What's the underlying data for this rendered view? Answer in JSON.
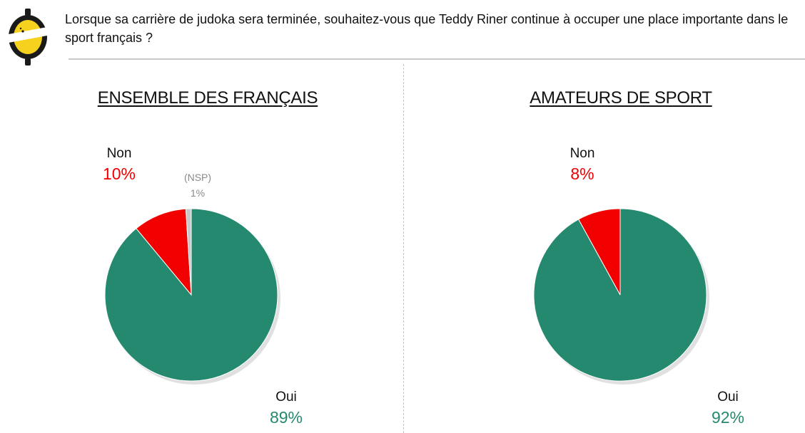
{
  "question": "Lorsque sa carrière de judoka sera terminée, souhaitez-vous que Teddy Riner continue à occuper une place importante dans le sport français ?",
  "colors": {
    "oui": "#25896f",
    "non": "#f20000",
    "nsp": "#c8c8c8"
  },
  "chart_data": [
    {
      "type": "pie",
      "title": "ENSEMBLE DES FRANÇAIS",
      "slices": [
        {
          "label": "Oui",
          "value": 89,
          "display": "89%"
        },
        {
          "label": "Non",
          "value": 10,
          "display": "10%"
        },
        {
          "label": "(NSP)",
          "value": 1,
          "display": "1%"
        }
      ]
    },
    {
      "type": "pie",
      "title": "AMATEURS DE SPORT",
      "slices": [
        {
          "label": "Oui",
          "value": 92,
          "display": "92%"
        },
        {
          "label": "Non",
          "value": 8,
          "display": "8%"
        }
      ]
    }
  ]
}
